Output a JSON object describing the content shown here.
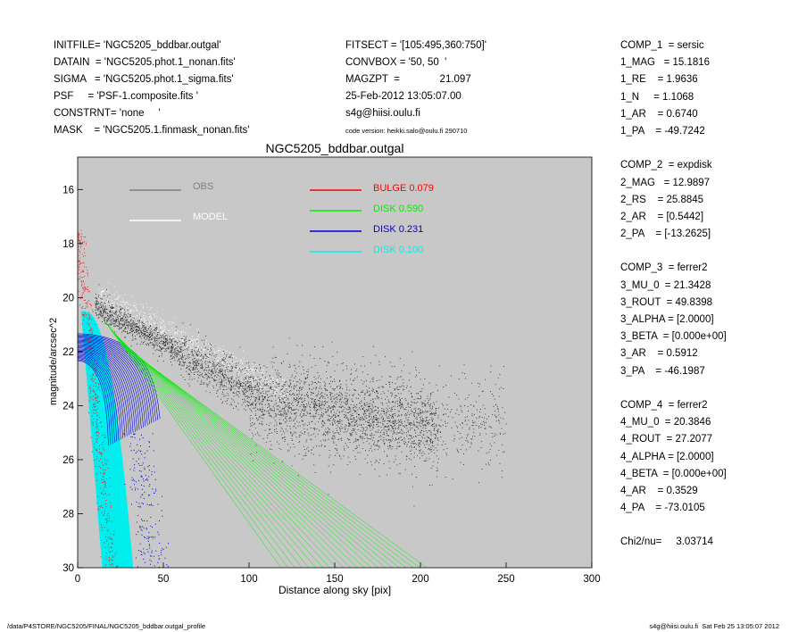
{
  "header": {
    "left": [
      "INITFILE= 'NGC5205_bddbar.outgal'",
      "DATAIN  = 'NGC5205.phot.1_nonan.fits'",
      "SIGMA   = 'NGC5205.phot.1_sigma.fits'",
      "PSF     = 'PSF-1.composite.fits '",
      "CONSTRNT= 'none     '",
      "MASK    = 'NGC5205.1.finmask_nonan.fits'"
    ],
    "middle": [
      "FITSECT = '[105:495,360:750]'",
      "CONVBOX = '50, 50  '",
      "MAGZPT  =              21.097",
      "25-Feb-2012 13:05:07.00",
      "s4g@hiisi.oulu.fi"
    ],
    "code_version": "code version: heikki.salo@oulu.fi 290710"
  },
  "params": [
    "COMP_1  = sersic",
    "1_MAG   = 15.1816",
    "1_RE    = 1.9636",
    "1_N     = 1.1068",
    "1_AR    = 0.6740",
    "1_PA    = -49.7242",
    "",
    "COMP_2  = expdisk",
    "2_MAG   = 12.9897",
    "2_RS    = 25.8845",
    "2_AR    = [0.5442]",
    "2_PA    = [-13.2625]",
    "",
    "COMP_3  = ferrer2",
    "3_MU_0  = 21.3428",
    "3_ROUT  = 49.8398",
    "3_ALPHA = [2.0000]",
    "3_BETA  = [0.000e+00]",
    "3_AR    = 0.5912",
    "3_PA    = -46.1987",
    "",
    "COMP_4  = ferrer2",
    "4_MU_0  = 20.3846",
    "4_ROUT  = 27.2077",
    "4_ALPHA = [2.0000]",
    "4_BETA  = [0.000e+00]",
    "4_AR    = 0.3529",
    "4_PA    = -73.0105",
    "",
    "Chi2/nu=     3.03714"
  ],
  "footer": {
    "left": "/data/P4STORE/NGC5205/FINAL/NGC5205_bddbar.outgal_profile",
    "right": "s4g@hiisi.oulu.fi  Sat Feb 25 13:05:07 2012"
  },
  "chart_data": {
    "type": "scatter",
    "title": "NGC5205_bddbar.outgal",
    "xlabel": "Distance along sky [pix]",
    "ylabel": "magnitude/arcsec^2",
    "xlim": [
      0,
      300
    ],
    "ylim": [
      30,
      14.8
    ],
    "y_inverted": true,
    "xticks": [
      0,
      50,
      100,
      150,
      200,
      250,
      300
    ],
    "yticks": [
      16,
      18,
      20,
      22,
      24,
      26,
      28,
      30
    ],
    "background": "#c8c8c8",
    "legend": [
      {
        "label": "OBS",
        "color": "#808080"
      },
      {
        "label": "MODEL",
        "color": "#ffffff"
      }
    ],
    "components": [
      {
        "label": "BULGE",
        "value": "0.079",
        "color": "#ff0000"
      },
      {
        "label": "DISK",
        "value": "0.590",
        "color": "#00ee00"
      },
      {
        "label": "DISK",
        "value": "0.231",
        "color": "#0000dd"
      },
      {
        "label": "DISK",
        "value": "0.100",
        "color": "#00eeee"
      }
    ]
  }
}
